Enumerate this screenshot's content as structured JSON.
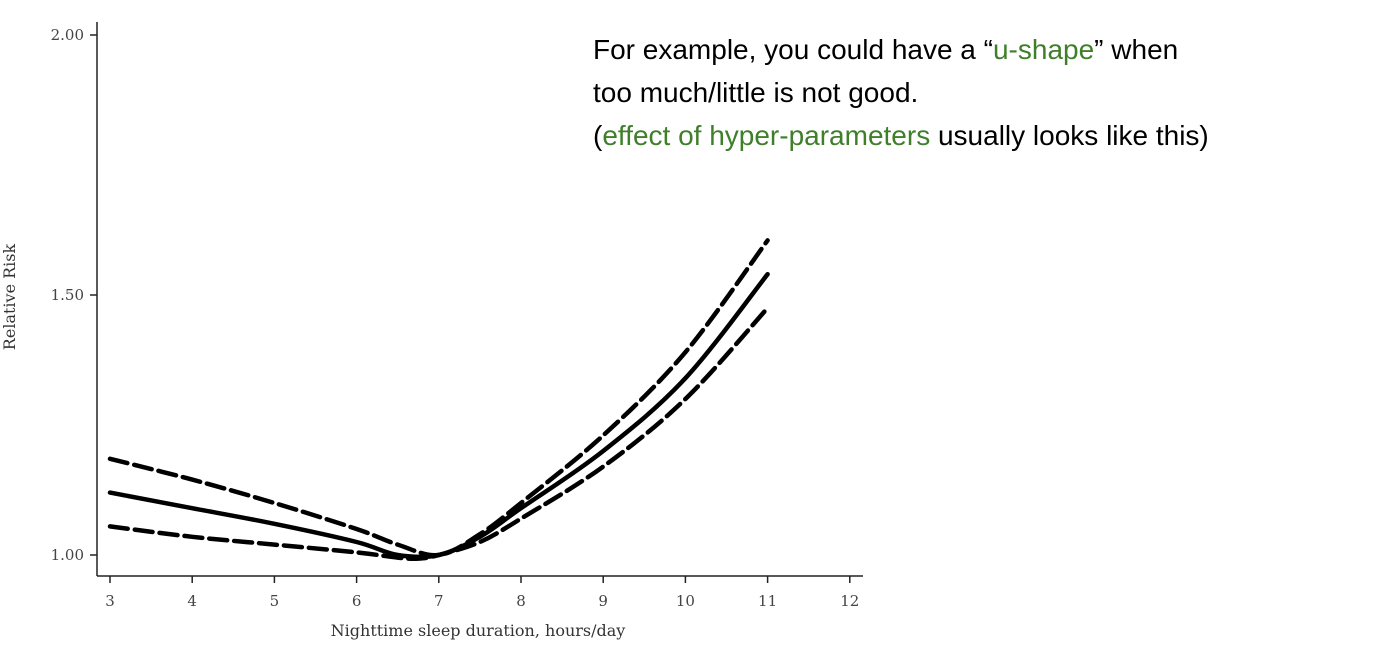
{
  "annotation": {
    "line1_pre": "For example, you could have a “",
    "line1_hl": "u-shape",
    "line1_post": "” when",
    "line2": "too much/little is not good.",
    "line3_pre": "(",
    "line3_hl": "effect of hyper-parameters",
    "line3_post": " usually looks like this)",
    "highlight_color": "#3f7f2a"
  },
  "chart_data": {
    "type": "line",
    "xlabel": "Nighttime sleep duration, hours/day",
    "ylabel": "Relative Risk",
    "xlim": [
      3,
      12
    ],
    "ylim": [
      1.0,
      2.0
    ],
    "xticks": [
      "3",
      "4",
      "5",
      "6",
      "7",
      "8",
      "9",
      "10",
      "11",
      "12"
    ],
    "yticks": [
      "1.00",
      "1.50",
      "2.00"
    ],
    "grid": false,
    "series": [
      {
        "style": "dashed",
        "x": [
          3,
          4,
          5,
          6,
          6.5,
          7,
          7.5,
          8,
          9,
          10,
          11
        ],
        "y": [
          1.185,
          1.145,
          1.1,
          1.05,
          1.02,
          1.0,
          1.04,
          1.1,
          1.23,
          1.39,
          1.605
        ]
      },
      {
        "style": "solid",
        "x": [
          3,
          4,
          5,
          6,
          6.5,
          7,
          7.5,
          8,
          9,
          10,
          11
        ],
        "y": [
          1.12,
          1.09,
          1.06,
          1.025,
          1.0,
          1.0,
          1.035,
          1.09,
          1.2,
          1.34,
          1.54
        ]
      },
      {
        "style": "dashed",
        "x": [
          3,
          4,
          5,
          6,
          6.5,
          6.75,
          7,
          7.5,
          8,
          9,
          10,
          11
        ],
        "y": [
          1.055,
          1.035,
          1.02,
          1.005,
          0.995,
          0.993,
          1.0,
          1.025,
          1.07,
          1.17,
          1.3,
          1.475
        ]
      }
    ]
  }
}
